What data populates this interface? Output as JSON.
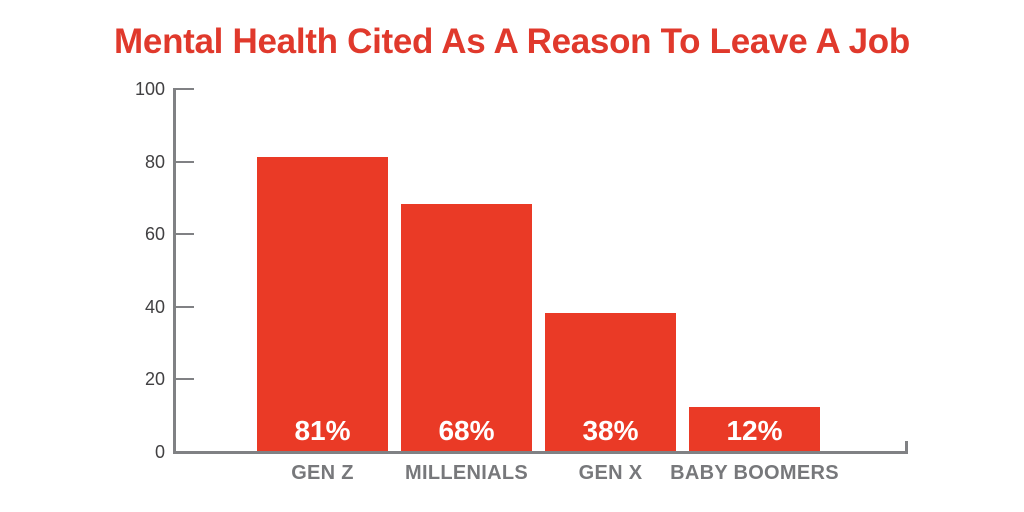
{
  "title": "Mental Health Cited As A Reason To Leave A Job",
  "colors": {
    "background": "#FFFFFF",
    "title_red": "#E0392C",
    "bar_red": "#EA3A26",
    "axis_gray": "#808184",
    "tick_label_gray": "#414042",
    "category_label_gray": "#77787B",
    "value_label_white": "#FFFFFF"
  },
  "chart_data": {
    "type": "bar",
    "title": "Mental Health Cited As A Reason To Leave A Job",
    "categories": [
      "GEN Z",
      "MILLENIALS",
      "GEN X",
      "BABY BOOMERS"
    ],
    "values": [
      81,
      68,
      38,
      12
    ],
    "bar_labels": [
      "81%",
      "68%",
      "38%",
      "12%"
    ],
    "xlabel": "",
    "ylabel": "",
    "ylim": [
      0,
      100
    ],
    "y_ticks": [
      0,
      20,
      40,
      60,
      80,
      100
    ],
    "grid": false,
    "legend": false,
    "bar_color": "#EA3A26",
    "value_label_position": "inside-bottom"
  }
}
